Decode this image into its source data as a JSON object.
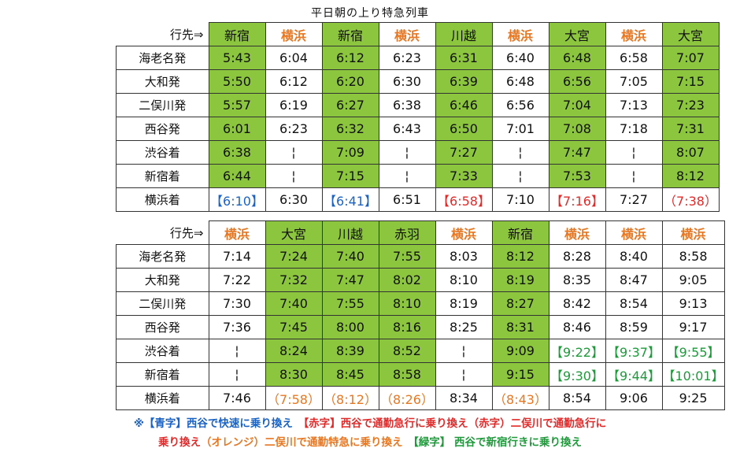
{
  "title": "平日朝の上り特急列車",
  "header_label": "行先⇒",
  "pass_symbol": "¦",
  "rows": [
    "海老名発",
    "大和発",
    "二俣川発",
    "西谷発",
    "渋谷着",
    "新宿着",
    "横浜着"
  ],
  "tables": [
    {
      "columns": [
        {
          "dest": "新宿",
          "green": true,
          "times": [
            "5:43",
            "5:50",
            "5:57",
            "6:01",
            "6:38",
            "6:44",
            "【6:10】"
          ],
          "last_color": "blue"
        },
        {
          "dest": "横浜",
          "green": false,
          "times": [
            "6:04",
            "6:12",
            "6:19",
            "6:23",
            "¦",
            "¦",
            "6:30"
          ],
          "last_color": ""
        },
        {
          "dest": "新宿",
          "green": true,
          "times": [
            "6:12",
            "6:20",
            "6:27",
            "6:32",
            "7:09",
            "7:15",
            "【6:41】"
          ],
          "last_color": "blue"
        },
        {
          "dest": "横浜",
          "green": false,
          "times": [
            "6:23",
            "6:30",
            "6:38",
            "6:43",
            "¦",
            "¦",
            "6:51"
          ],
          "last_color": ""
        },
        {
          "dest": "川越",
          "green": true,
          "times": [
            "6:31",
            "6:39",
            "6:46",
            "6:50",
            "7:27",
            "7:33",
            "【6:58】"
          ],
          "last_color": "red"
        },
        {
          "dest": "横浜",
          "green": false,
          "times": [
            "6:40",
            "6:48",
            "6:56",
            "7:01",
            "¦",
            "¦",
            "7:10"
          ],
          "last_color": ""
        },
        {
          "dest": "大宮",
          "green": true,
          "times": [
            "6:48",
            "6:56",
            "7:04",
            "7:08",
            "7:47",
            "7:53",
            "【7:16】"
          ],
          "last_color": "red"
        },
        {
          "dest": "横浜",
          "green": false,
          "times": [
            "6:58",
            "7:05",
            "7:13",
            "7:18",
            "¦",
            "¦",
            "7:27"
          ],
          "last_color": ""
        },
        {
          "dest": "大宮",
          "green": true,
          "times": [
            "7:07",
            "7:15",
            "7:23",
            "7:31",
            "8:07",
            "8:12",
            "（7:38）"
          ],
          "last_color": "red"
        }
      ]
    },
    {
      "columns": [
        {
          "dest": "横浜",
          "green": false,
          "times": [
            "7:14",
            "7:22",
            "7:30",
            "7:36",
            "¦",
            "¦",
            "7:46"
          ],
          "last_color": ""
        },
        {
          "dest": "大宮",
          "green": true,
          "times": [
            "7:24",
            "7:32",
            "7:40",
            "7:45",
            "8:24",
            "8:30",
            "（7:58）"
          ],
          "last_color": "orange"
        },
        {
          "dest": "川越",
          "green": true,
          "times": [
            "7:40",
            "7:47",
            "7:55",
            "8:00",
            "8:39",
            "8:45",
            "（8:12）"
          ],
          "last_color": "orange"
        },
        {
          "dest": "赤羽",
          "green": true,
          "times": [
            "7:55",
            "8:02",
            "8:10",
            "8:16",
            "8:52",
            "8:58",
            "（8:26）"
          ],
          "last_color": "orange"
        },
        {
          "dest": "横浜",
          "green": false,
          "times": [
            "8:03",
            "8:10",
            "8:19",
            "8:25",
            "¦",
            "¦",
            "8:34"
          ],
          "last_color": ""
        },
        {
          "dest": "新宿",
          "green": true,
          "times": [
            "8:12",
            "8:19",
            "8:27",
            "8:31",
            "9:09",
            "9:15",
            "（8:43）"
          ],
          "last_color": "orange"
        },
        {
          "dest": "横浜",
          "green": false,
          "times": [
            "8:28",
            "8:35",
            "8:42",
            "8:46",
            "【9:22】",
            "【9:30】",
            "8:54"
          ],
          "green_text_rows": [
            4,
            5
          ]
        },
        {
          "dest": "横浜",
          "green": false,
          "times": [
            "8:40",
            "8:47",
            "8:54",
            "8:59",
            "【9:37】",
            "【9:44】",
            "9:06"
          ],
          "green_text_rows": [
            4,
            5
          ]
        },
        {
          "dest": "横浜",
          "green": false,
          "times": [
            "8:58",
            "9:05",
            "9:13",
            "9:17",
            "【9:55】",
            "【10:01】",
            "9:25"
          ],
          "green_text_rows": [
            4,
            5
          ]
        }
      ]
    }
  ],
  "legend": {
    "line1": [
      {
        "text": "※【青字】西谷で快速に乗り換え　",
        "color": "blue"
      },
      {
        "text": "【赤字】西谷で通勤急行に乗り換え（赤字）二俣川で通勤急行に",
        "color": "red"
      }
    ],
    "line2": [
      {
        "text": "乗り換え",
        "color": "red"
      },
      {
        "text": "（オレンジ）二俣川で通勤特急に乗り換え",
        "color": "orange"
      },
      {
        "text": "　【緑字】 西谷で新宿行きに乗り換え",
        "color": "green"
      }
    ]
  },
  "colors": {
    "green_cell": "#8cc63e",
    "orange": "#e87722",
    "blue": "#1a63c4",
    "red": "#e32a2a",
    "legend_green": "#1e9a3b"
  }
}
